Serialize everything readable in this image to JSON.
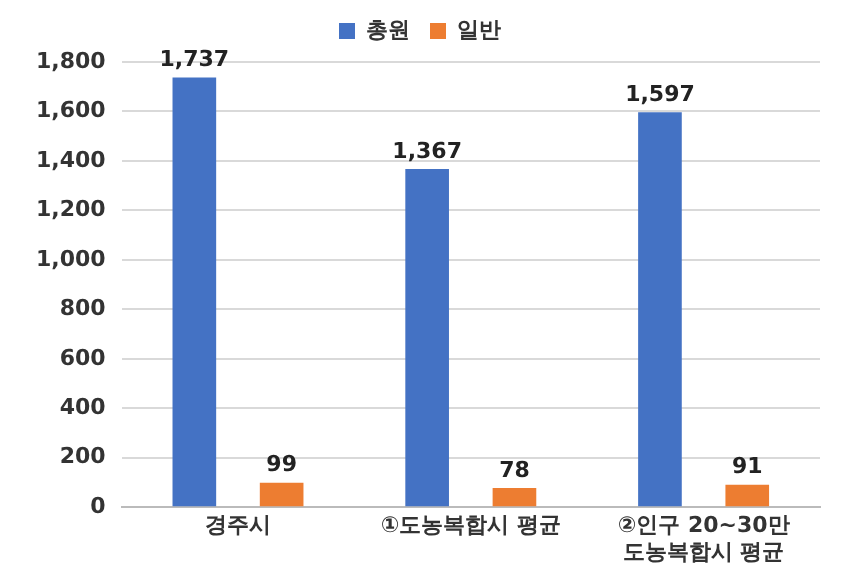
{
  "chart_data": {
    "type": "bar",
    "categories": [
      "경주시",
      "①도농복합시 평균",
      "②인구 20~30만\n도농복합시 평균"
    ],
    "series": [
      {
        "name": "총원",
        "color": "#4472c4",
        "values": [
          1737,
          1367,
          1597
        ],
        "value_labels": [
          "1,737",
          "1,367",
          "1,597"
        ]
      },
      {
        "name": "일반",
        "color": "#ed7d31",
        "values": [
          99,
          78,
          91
        ],
        "value_labels": [
          "99",
          "78",
          "91"
        ]
      }
    ],
    "ylim": [
      0,
      1800
    ],
    "yticks": [
      0,
      {
        "value": 200,
        "label": "200"
      },
      {
        "value": 400,
        "label": "400"
      },
      {
        "value": 600,
        "label": "600"
      },
      {
        "value": 800,
        "label": "800"
      },
      {
        "value": 1000,
        "label": "1,000"
      },
      {
        "value": 1200,
        "label": "1,200"
      },
      {
        "value": 1400,
        "label": "1,400"
      },
      {
        "value": 1600,
        "label": "1,600"
      },
      {
        "value": 1800,
        "label": "1,800"
      }
    ],
    "grid": "y",
    "legend": "top"
  }
}
